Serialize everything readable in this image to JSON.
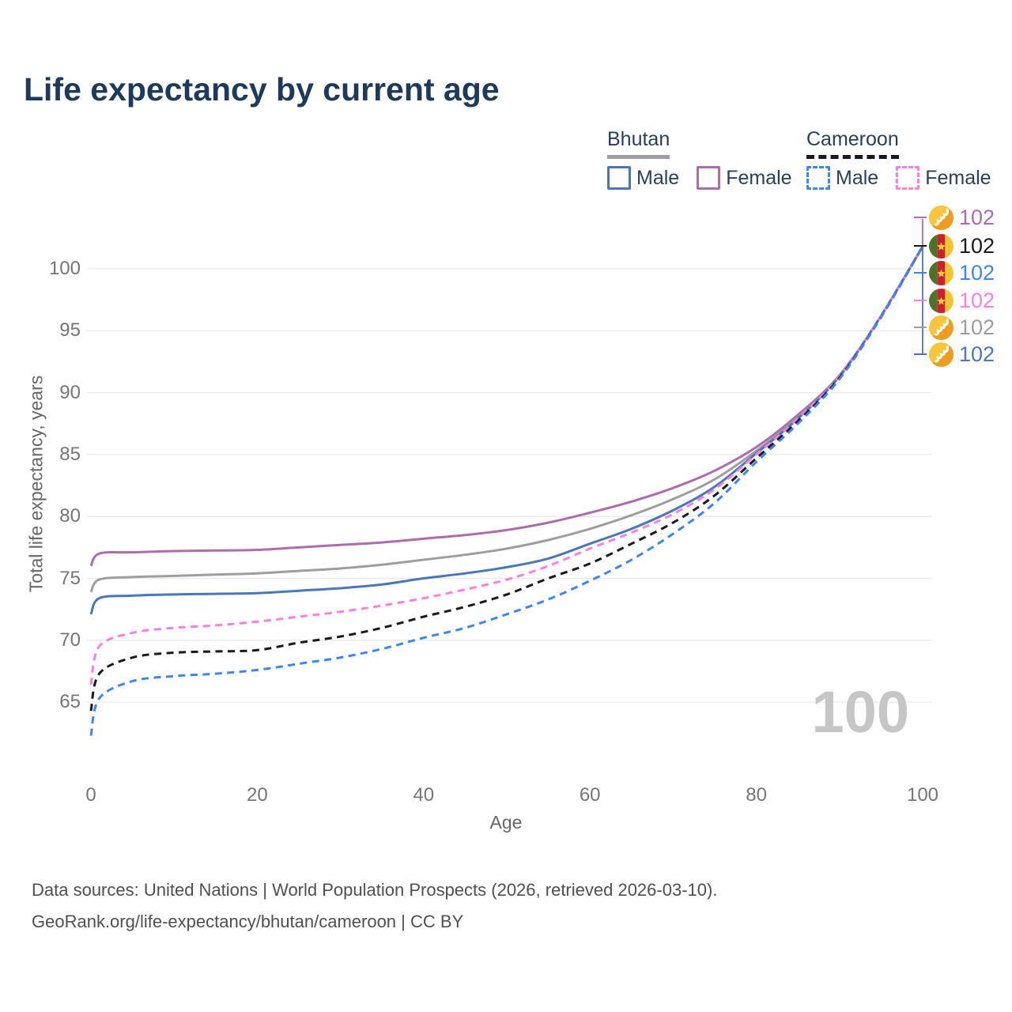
{
  "title": "Life expectancy by current age",
  "watermark": "100",
  "colors": {
    "title": "#1d3a5c",
    "legend_text": "#2a3f5a",
    "tick_label": "#757575",
    "axis_title": "#666666",
    "gridline": "#eaeaea",
    "footer_text": "#4f4f4f",
    "watermark": "#c6c6c6",
    "bhutan_male": "#4a76bb",
    "bhutan_female": "#ad6cab",
    "bhutan_both": "#9e9e9e",
    "cameroon_male": "#3d85f2",
    "cameroon_female": "#fb7fe0",
    "cameroon_both": "#1a1a1a"
  },
  "legend": {
    "groups": [
      {
        "country": "Bhutan",
        "line_style": "solid",
        "underline_color": "#9e9e9e",
        "items": [
          {
            "label": "Male",
            "color": "#4a76bb"
          },
          {
            "label": "Female",
            "color": "#ad6cab"
          }
        ]
      },
      {
        "country": "Cameroon",
        "line_style": "dashed",
        "underline_color": "#1a1a1a",
        "items": [
          {
            "label": "Male",
            "color": "#3d85f2"
          },
          {
            "label": "Female",
            "color": "#fb7fe0"
          }
        ]
      }
    ]
  },
  "end_labels": [
    {
      "value": "102",
      "color": "#ad6cab",
      "flag": "bhutan",
      "series": "Bhutan Female"
    },
    {
      "value": "102",
      "color": "#1a1a1a",
      "flag": "cameroon",
      "series": "Cameroon Both sexes"
    },
    {
      "value": "102",
      "color": "#3d85f2",
      "flag": "cameroon",
      "series": "Cameroon Male"
    },
    {
      "value": "102",
      "color": "#fb7fe0",
      "flag": "cameroon",
      "series": "Cameroon Female"
    },
    {
      "value": "102",
      "color": "#9e9e9e",
      "flag": "bhutan",
      "series": "Bhutan Both sexes"
    },
    {
      "value": "102",
      "color": "#4a76bb",
      "flag": "bhutan",
      "series": "Bhutan Male"
    }
  ],
  "footer": {
    "line1": "Data sources: United Nations | World Population Prospects (2026, retrieved 2026-03-10).",
    "line2": "GeoRank.org/life-expectancy/bhutan/cameroon | CC BY"
  },
  "chart_data": {
    "type": "line",
    "title": "Life expectancy by current age",
    "xlabel": "Age",
    "ylabel": "Total life expectancy, years",
    "x_ticks": [
      0,
      20,
      40,
      60,
      80,
      100
    ],
    "y_ticks": [
      65,
      70,
      75,
      80,
      85,
      90,
      95,
      100
    ],
    "xlim": [
      0,
      100
    ],
    "ylim": [
      62,
      103
    ],
    "grid": "horizontal",
    "legend_position": "top-right",
    "x": [
      0,
      1,
      5,
      10,
      15,
      20,
      25,
      30,
      35,
      40,
      45,
      50,
      55,
      60,
      65,
      70,
      75,
      80,
      85,
      90,
      95,
      100
    ],
    "series": [
      {
        "name": "Bhutan Female",
        "country": "Bhutan",
        "sex": "female",
        "color": "#ad6cab",
        "dash": false,
        "end_value": 102,
        "values": [
          76.0,
          77.0,
          77.1,
          77.2,
          77.25,
          77.3,
          77.5,
          77.7,
          77.9,
          78.2,
          78.5,
          78.9,
          79.5,
          80.3,
          81.2,
          82.3,
          83.7,
          85.6,
          88.2,
          91.4,
          96.2,
          101.8
        ]
      },
      {
        "name": "Bhutan Both sexes",
        "country": "Bhutan",
        "sex": "both",
        "color": "#9e9e9e",
        "dash": false,
        "end_value": 102,
        "values": [
          73.9,
          74.9,
          75.1,
          75.2,
          75.3,
          75.4,
          75.6,
          75.8,
          76.1,
          76.5,
          76.9,
          77.4,
          78.1,
          79.0,
          80.1,
          81.4,
          83.0,
          85.3,
          88.0,
          91.3,
          96.2,
          101.8
        ]
      },
      {
        "name": "Bhutan Male",
        "country": "Bhutan",
        "sex": "male",
        "color": "#4a76bb",
        "dash": false,
        "end_value": 102,
        "values": [
          72.1,
          73.4,
          73.6,
          73.7,
          73.75,
          73.8,
          74.0,
          74.2,
          74.5,
          75.0,
          75.4,
          75.9,
          76.6,
          77.8,
          79.0,
          80.5,
          82.4,
          85.1,
          87.9,
          91.3,
          96.2,
          101.8
        ]
      },
      {
        "name": "Cameroon Female",
        "country": "Cameroon",
        "sex": "female",
        "color": "#fb7fe0",
        "dash": true,
        "end_value": 102,
        "values": [
          66.4,
          69.5,
          70.6,
          71.0,
          71.2,
          71.5,
          71.9,
          72.3,
          72.8,
          73.4,
          74.1,
          74.9,
          76.0,
          77.4,
          78.7,
          80.2,
          82.2,
          85.0,
          87.9,
          91.3,
          96.2,
          101.8
        ]
      },
      {
        "name": "Cameroon Both sexes",
        "country": "Cameroon",
        "sex": "both",
        "color": "#1a1a1a",
        "dash": true,
        "end_value": 102,
        "values": [
          64.3,
          67.3,
          68.6,
          69.0,
          69.1,
          69.2,
          69.8,
          70.3,
          71.0,
          71.9,
          72.7,
          73.7,
          75.0,
          76.2,
          77.8,
          79.5,
          81.7,
          84.7,
          87.7,
          91.2,
          96.1,
          101.8
        ]
      },
      {
        "name": "Cameroon Male",
        "country": "Cameroon",
        "sex": "male",
        "color": "#3d85f2",
        "dash": true,
        "end_value": 102,
        "values": [
          62.3,
          65.3,
          66.7,
          67.1,
          67.3,
          67.6,
          68.1,
          68.6,
          69.3,
          70.2,
          71.0,
          72.1,
          73.3,
          74.8,
          76.5,
          78.6,
          81.1,
          84.4,
          87.5,
          91.1,
          96.1,
          101.8
        ]
      }
    ]
  }
}
